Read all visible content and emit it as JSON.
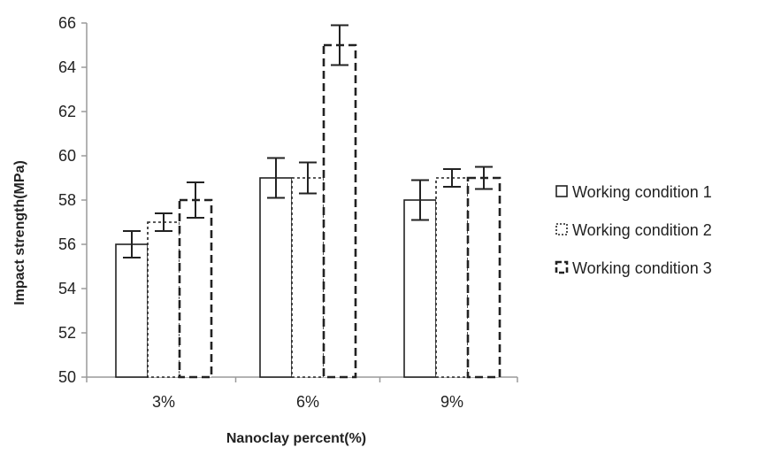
{
  "chart_data": {
    "type": "bar",
    "categories": [
      "3%",
      "6%",
      "9%"
    ],
    "xlabel": "Nanoclay percent(%)",
    "ylabel": "Impact strength(MPa)",
    "ylim": [
      50,
      66
    ],
    "yticks": [
      50,
      52,
      54,
      56,
      58,
      60,
      62,
      64,
      66
    ],
    "grid": false,
    "legend_position": "right",
    "series": [
      {
        "name": "Working condition 1",
        "style": "solid",
        "values": [
          56,
          59,
          58
        ],
        "errors": [
          0.6,
          0.9,
          0.9
        ]
      },
      {
        "name": "Working condition 2",
        "style": "dotted",
        "values": [
          57,
          59,
          59
        ],
        "errors": [
          0.4,
          0.7,
          0.4
        ]
      },
      {
        "name": "Working condition 3",
        "style": "dashed",
        "values": [
          58,
          65,
          59
        ],
        "errors": [
          0.8,
          0.9,
          0.5
        ]
      }
    ],
    "colors": {
      "bar_fill": "#ffffff",
      "stroke": "#222222",
      "axis": "#9a9a9a"
    }
  }
}
